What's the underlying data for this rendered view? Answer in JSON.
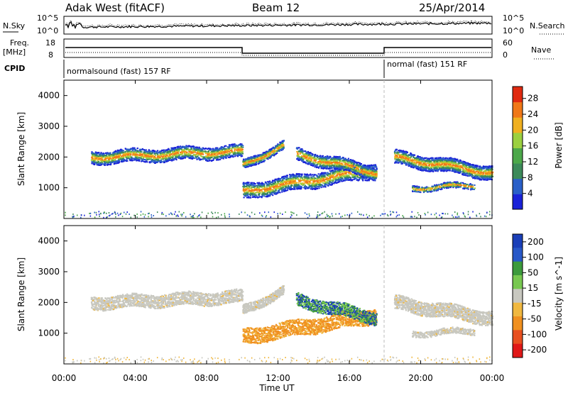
{
  "header": {
    "station": "Adak West (fitACF)",
    "beam": "Beam 12",
    "date": "25/Apr/2014"
  },
  "noise_panel": {
    "left_label": "N.Sky",
    "right_label": "N.Search",
    "left_ticks": [
      "10^5",
      "10^0"
    ],
    "right_ticks": [
      "10^5",
      "10^0"
    ]
  },
  "freq_panel": {
    "left_label_1": "Freq.",
    "left_label_2": "[MHz]",
    "left_ticks": [
      "18",
      "8"
    ],
    "right_label": "Nave",
    "right_ticks": [
      "60",
      "0"
    ]
  },
  "cpid_panel": {
    "label": "CPID",
    "segments": [
      "normalsound (fast) 157 RF",
      "normal (fast) 151 RF"
    ]
  },
  "colors": {
    "power": [
      "#1a22d8",
      "#2a5fc8",
      "#3c8a5a",
      "#4ca84a",
      "#9bd040",
      "#f0b020",
      "#f07818",
      "#e02a10"
    ],
    "velocity": [
      "#1a3fb8",
      "#2858c8",
      "#3c9a3c",
      "#78c850",
      "#c8c8c0",
      "#f0b840",
      "#f09020",
      "#e85020",
      "#e01818"
    ]
  },
  "chart_data": [
    {
      "type": "heatmap",
      "title": "Power",
      "ylabel": "Slant Range [km]",
      "xlabel": "",
      "xlim": [
        "00:00",
        "24:00"
      ],
      "ylim": [
        0,
        4500
      ],
      "y_ticks": [
        1000,
        2000,
        3000,
        4000
      ],
      "colorbar": {
        "label": "Power [dB]",
        "ticks": [
          4,
          8,
          12,
          16,
          20,
          24,
          28
        ],
        "range": [
          0,
          31
        ]
      }
    },
    {
      "type": "heatmap",
      "title": "Velocity",
      "ylabel": "Slant Range [km]",
      "xlabel": "Time UT",
      "x_ticks": [
        "00:00",
        "04:00",
        "08:00",
        "12:00",
        "16:00",
        "20:00",
        "00:00"
      ],
      "xlim": [
        "00:00",
        "24:00"
      ],
      "ylim": [
        0,
        4500
      ],
      "y_ticks": [
        1000,
        2000,
        3000,
        4000
      ],
      "colorbar": {
        "label": "Velocity [m s^-1]",
        "ticks": [
          200,
          100,
          50,
          15,
          -15,
          -50,
          -100,
          -200
        ]
      }
    }
  ]
}
